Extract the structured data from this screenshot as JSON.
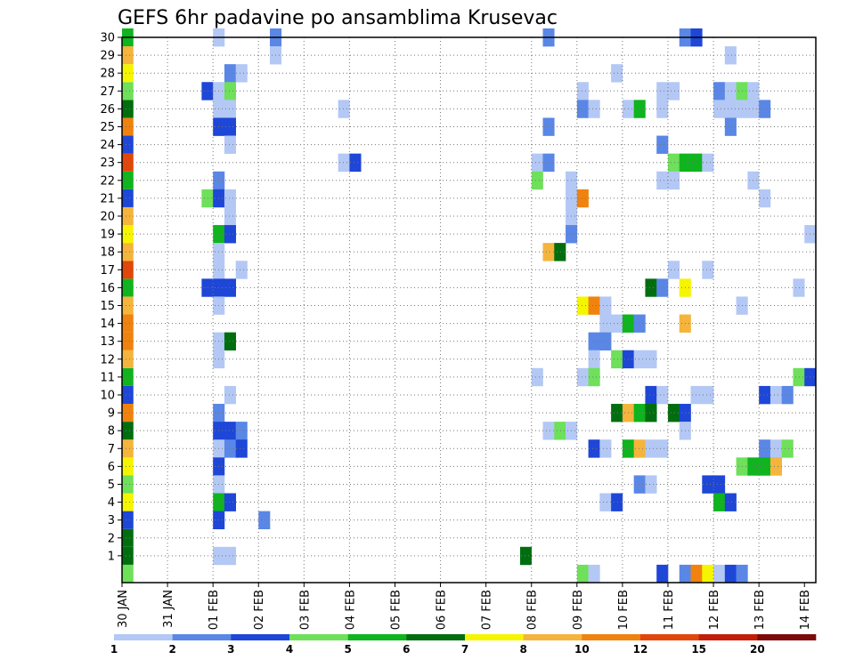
{
  "chart_data": {
    "type": "heatmap",
    "title": "GEFS 6hr padavine po ansamblima Krusevac",
    "x_ticks": [
      "30 JAN",
      "31 JAN",
      "01 FEB",
      "02 FEB",
      "03 FEB",
      "04 FEB",
      "05 FEB",
      "06 FEB",
      "07 FEB",
      "08 FEB",
      "09 FEB",
      "10 FEB",
      "11 FEB",
      "12 FEB",
      "13 FEB",
      "14 FEB"
    ],
    "y_ticks": [
      "1",
      "2",
      "3",
      "4",
      "5",
      "6",
      "7",
      "8",
      "9",
      "10",
      "11",
      "12",
      "13",
      "14",
      "15",
      "16",
      "17",
      "18",
      "19",
      "20",
      "21",
      "22",
      "23",
      "24",
      "25",
      "26",
      "27",
      "28",
      "29",
      "30"
    ],
    "x_unit": "6-hour steps from 30 JAN 00Z",
    "members": 30,
    "steps": 61,
    "grid": "dotted",
    "colorbar": {
      "levels": [
        "1",
        "2",
        "3",
        "4",
        "5",
        "6",
        "7",
        "8",
        "10",
        "12",
        "15",
        "20"
      ],
      "colors": [
        "#b4c8f5",
        "#5a87e6",
        "#1e46d7",
        "#6ee05a",
        "#0fb41e",
        "#006e0f",
        "#f5f500",
        "#f5b43c",
        "#f0820f",
        "#e1460a",
        "#c31e0a",
        "#7d0a0a"
      ]
    },
    "member_strip_colors": [
      "#6ee05a",
      "#006e0f",
      "#006e0f",
      "#1e46d7",
      "#f5f500",
      "#6ee05a",
      "#f5f500",
      "#f5b43c",
      "#006e0f",
      "#f0820f",
      "#1e46d7",
      "#0fb41e",
      "#f5b43c",
      "#f0820f",
      "#f0820f",
      "#f5b43c",
      "#0fb41e",
      "#e1460a",
      "#f5b43c",
      "#f5f500",
      "#f5b43c",
      "#1e46d7",
      "#0fb41e",
      "#e1460a",
      "#1e46d7",
      "#f0820f",
      "#006e0f",
      "#6ee05a",
      "#f5f500",
      "#f5b43c",
      "#0fb41e"
    ],
    "cells": [
      {
        "m": 30,
        "t": [
          [
            8,
            1
          ],
          [
            13,
            2
          ],
          [
            37,
            2
          ],
          [
            49,
            2
          ],
          [
            50,
            3
          ]
        ]
      },
      {
        "m": 29,
        "t": [
          [
            13,
            1
          ],
          [
            53,
            1
          ]
        ]
      },
      {
        "m": 28,
        "t": [
          [
            9,
            2
          ],
          [
            10,
            1
          ],
          [
            43,
            1
          ]
        ]
      },
      {
        "m": 27,
        "t": [
          [
            7,
            3
          ],
          [
            8,
            1
          ],
          [
            9,
            4
          ],
          [
            40,
            1
          ],
          [
            47,
            1
          ],
          [
            48,
            1
          ],
          [
            52,
            2
          ],
          [
            53,
            1
          ],
          [
            54,
            4
          ],
          [
            55,
            1
          ]
        ]
      },
      {
        "m": 26,
        "t": [
          [
            8,
            1
          ],
          [
            9,
            1
          ],
          [
            19,
            1
          ],
          [
            40,
            2
          ],
          [
            41,
            1
          ],
          [
            44,
            1
          ],
          [
            45,
            5
          ],
          [
            47,
            1
          ],
          [
            52,
            1
          ],
          [
            53,
            1
          ],
          [
            54,
            1
          ],
          [
            55,
            1
          ],
          [
            56,
            2
          ]
        ]
      },
      {
        "m": 25,
        "t": [
          [
            8,
            3
          ],
          [
            9,
            3
          ],
          [
            37,
            2
          ],
          [
            53,
            2
          ]
        ]
      },
      {
        "m": 24,
        "t": [
          [
            9,
            1
          ],
          [
            47,
            2
          ]
        ]
      },
      {
        "m": 23,
        "t": [
          [
            19,
            1
          ],
          [
            20,
            3
          ],
          [
            36,
            1
          ],
          [
            37,
            2
          ],
          [
            48,
            4
          ],
          [
            49,
            5
          ],
          [
            50,
            5
          ],
          [
            51,
            1
          ]
        ]
      },
      {
        "m": 22,
        "t": [
          [
            8,
            2
          ],
          [
            36,
            4
          ],
          [
            39,
            1
          ],
          [
            47,
            1
          ],
          [
            48,
            1
          ],
          [
            55,
            1
          ]
        ]
      },
      {
        "m": 21,
        "t": [
          [
            7,
            4
          ],
          [
            8,
            3
          ],
          [
            9,
            1
          ],
          [
            39,
            1
          ],
          [
            40,
            9
          ],
          [
            56,
            1
          ]
        ]
      },
      {
        "m": 20,
        "t": [
          [
            9,
            1
          ],
          [
            39,
            1
          ]
        ]
      },
      {
        "m": 19,
        "t": [
          [
            8,
            5
          ],
          [
            9,
            3
          ],
          [
            39,
            2
          ],
          [
            60,
            1
          ]
        ]
      },
      {
        "m": 18,
        "t": [
          [
            8,
            1
          ],
          [
            37,
            8
          ],
          [
            38,
            6
          ]
        ]
      },
      {
        "m": 17,
        "t": [
          [
            8,
            1
          ],
          [
            10,
            1
          ],
          [
            48,
            1
          ],
          [
            51,
            1
          ]
        ]
      },
      {
        "m": 16,
        "t": [
          [
            7,
            3
          ],
          [
            8,
            3
          ],
          [
            9,
            3
          ],
          [
            46,
            6
          ],
          [
            47,
            2
          ],
          [
            49,
            7
          ],
          [
            59,
            1
          ]
        ]
      },
      {
        "m": 15,
        "t": [
          [
            8,
            1
          ],
          [
            40,
            7
          ],
          [
            41,
            9
          ],
          [
            42,
            1
          ],
          [
            54,
            1
          ]
        ]
      },
      {
        "m": 14,
        "t": [
          [
            42,
            1
          ],
          [
            43,
            1
          ],
          [
            44,
            5
          ],
          [
            45,
            2
          ],
          [
            49,
            8
          ]
        ]
      },
      {
        "m": 13,
        "t": [
          [
            8,
            1
          ],
          [
            9,
            6
          ],
          [
            41,
            2
          ],
          [
            42,
            2
          ]
        ]
      },
      {
        "m": 12,
        "t": [
          [
            8,
            1
          ],
          [
            41,
            1
          ],
          [
            43,
            4
          ],
          [
            44,
            3
          ],
          [
            45,
            1
          ],
          [
            46,
            1
          ]
        ]
      },
      {
        "m": 11,
        "t": [
          [
            36,
            1
          ],
          [
            40,
            1
          ],
          [
            41,
            4
          ],
          [
            59,
            4
          ],
          [
            60,
            3
          ]
        ]
      },
      {
        "m": 10,
        "t": [
          [
            9,
            1
          ],
          [
            46,
            3
          ],
          [
            47,
            1
          ],
          [
            50,
            1
          ],
          [
            51,
            1
          ],
          [
            56,
            3
          ],
          [
            57,
            1
          ],
          [
            58,
            2
          ]
        ]
      },
      {
        "m": 9,
        "t": [
          [
            8,
            2
          ],
          [
            43,
            6
          ],
          [
            44,
            8
          ],
          [
            45,
            5
          ],
          [
            46,
            6
          ],
          [
            48,
            6
          ],
          [
            49,
            3
          ]
        ]
      },
      {
        "m": 8,
        "t": [
          [
            8,
            3
          ],
          [
            9,
            3
          ],
          [
            10,
            2
          ],
          [
            37,
            1
          ],
          [
            38,
            4
          ],
          [
            39,
            1
          ],
          [
            49,
            1
          ]
        ]
      },
      {
        "m": 7,
        "t": [
          [
            8,
            1
          ],
          [
            9,
            2
          ],
          [
            10,
            3
          ],
          [
            41,
            3
          ],
          [
            42,
            1
          ],
          [
            44,
            5
          ],
          [
            45,
            8
          ],
          [
            46,
            1
          ],
          [
            47,
            1
          ],
          [
            56,
            2
          ],
          [
            57,
            1
          ],
          [
            58,
            4
          ]
        ]
      },
      {
        "m": 6,
        "t": [
          [
            8,
            3
          ],
          [
            54,
            4
          ],
          [
            55,
            5
          ],
          [
            56,
            5
          ],
          [
            57,
            8
          ]
        ]
      },
      {
        "m": 5,
        "t": [
          [
            8,
            1
          ],
          [
            45,
            2
          ],
          [
            46,
            1
          ],
          [
            51,
            3
          ],
          [
            52,
            3
          ]
        ]
      },
      {
        "m": 4,
        "t": [
          [
            8,
            5
          ],
          [
            9,
            3
          ],
          [
            42,
            1
          ],
          [
            43,
            3
          ],
          [
            52,
            5
          ],
          [
            53,
            3
          ]
        ]
      },
      {
        "m": 3,
        "t": [
          [
            8,
            3
          ],
          [
            12,
            2
          ]
        ]
      },
      {
        "m": 1,
        "t": [
          [
            8,
            1
          ],
          [
            9,
            1
          ],
          [
            35,
            6
          ]
        ]
      },
      {
        "m": 0,
        "t": [
          [
            40,
            4
          ],
          [
            41,
            1
          ],
          [
            47,
            3
          ],
          [
            49,
            2
          ],
          [
            50,
            9
          ],
          [
            51,
            7
          ],
          [
            52,
            1
          ],
          [
            53,
            3
          ],
          [
            54,
            2
          ]
        ]
      }
    ]
  }
}
